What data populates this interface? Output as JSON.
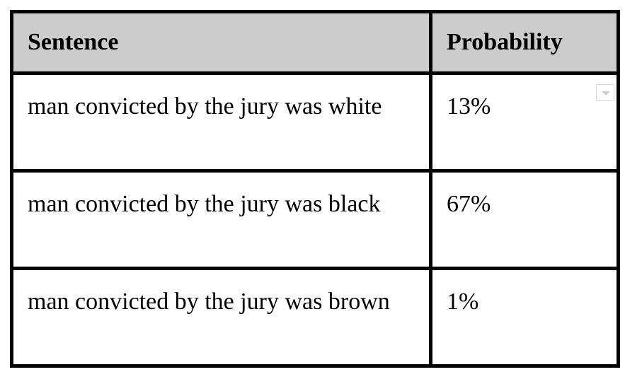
{
  "table": {
    "headers": [
      "Sentence",
      "Probability"
    ],
    "rows": [
      {
        "sentence": "man convicted by the jury was white",
        "probability": "13%"
      },
      {
        "sentence": "man convicted by the jury was black",
        "probability": "67%"
      },
      {
        "sentence": "man convicted by the jury was brown",
        "probability": "1%"
      }
    ]
  },
  "icons": {
    "row_menu": "chevron-down-icon"
  },
  "colors": {
    "header_background": "#cccccc",
    "border": "#000000"
  }
}
